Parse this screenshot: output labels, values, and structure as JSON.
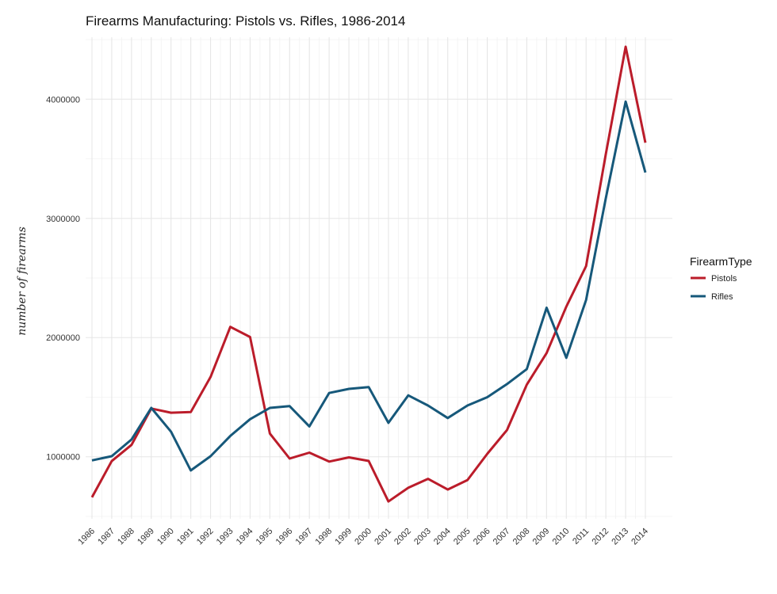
{
  "chart_data": {
    "type": "line",
    "title": "Firearms Manufacturing: Pistols vs. Rifles, 1986-2014",
    "xlabel": "",
    "ylabel": "number of firearms",
    "x": [
      1986,
      1987,
      1988,
      1989,
      1990,
      1991,
      1992,
      1993,
      1994,
      1995,
      1996,
      1997,
      1998,
      1999,
      2000,
      2001,
      2002,
      2003,
      2004,
      2005,
      2006,
      2007,
      2008,
      2009,
      2010,
      2011,
      2012,
      2013,
      2014
    ],
    "x_tick_labels": [
      "1986",
      "1987",
      "1988",
      "1989",
      "1990",
      "1991",
      "1992",
      "1993",
      "1994",
      "1995",
      "1996",
      "1997",
      "1998",
      "1999",
      "2000",
      "2001",
      "2002",
      "2003",
      "2004",
      "2005",
      "2006",
      "2007",
      "2008",
      "2009",
      "2010",
      "2011",
      "2012",
      "2013",
      "2014"
    ],
    "y_ticks": [
      1000000,
      2000000,
      3000000,
      4000000
    ],
    "y_tick_labels": [
      "1000000",
      "2000000",
      "3000000",
      "4000000"
    ],
    "ylim": [
      480000,
      4520000
    ],
    "grid": true,
    "legend": {
      "title": "FirearmType",
      "position": "right"
    },
    "series": [
      {
        "name": "Pistols",
        "color": "#BB1C2A",
        "values": [
          660000,
          964000,
          1100000,
          1405000,
          1370000,
          1375000,
          1670000,
          2090000,
          2005000,
          1195000,
          985000,
          1035000,
          960000,
          995000,
          965000,
          625000,
          740000,
          815000,
          725000,
          805000,
          1025000,
          1225000,
          1605000,
          1870000,
          2260000,
          2600000,
          3540000,
          4440000,
          3635000
        ]
      },
      {
        "name": "Rifles",
        "color": "#16587A",
        "values": [
          970000,
          1005000,
          1145000,
          1410000,
          1210000,
          885000,
          1005000,
          1175000,
          1315000,
          1410000,
          1425000,
          1255000,
          1535000,
          1570000,
          1585000,
          1285000,
          1515000,
          1430000,
          1325000,
          1430000,
          1500000,
          1610000,
          1735000,
          2250000,
          1830000,
          2315000,
          3170000,
          3980000,
          3385000
        ]
      }
    ]
  }
}
